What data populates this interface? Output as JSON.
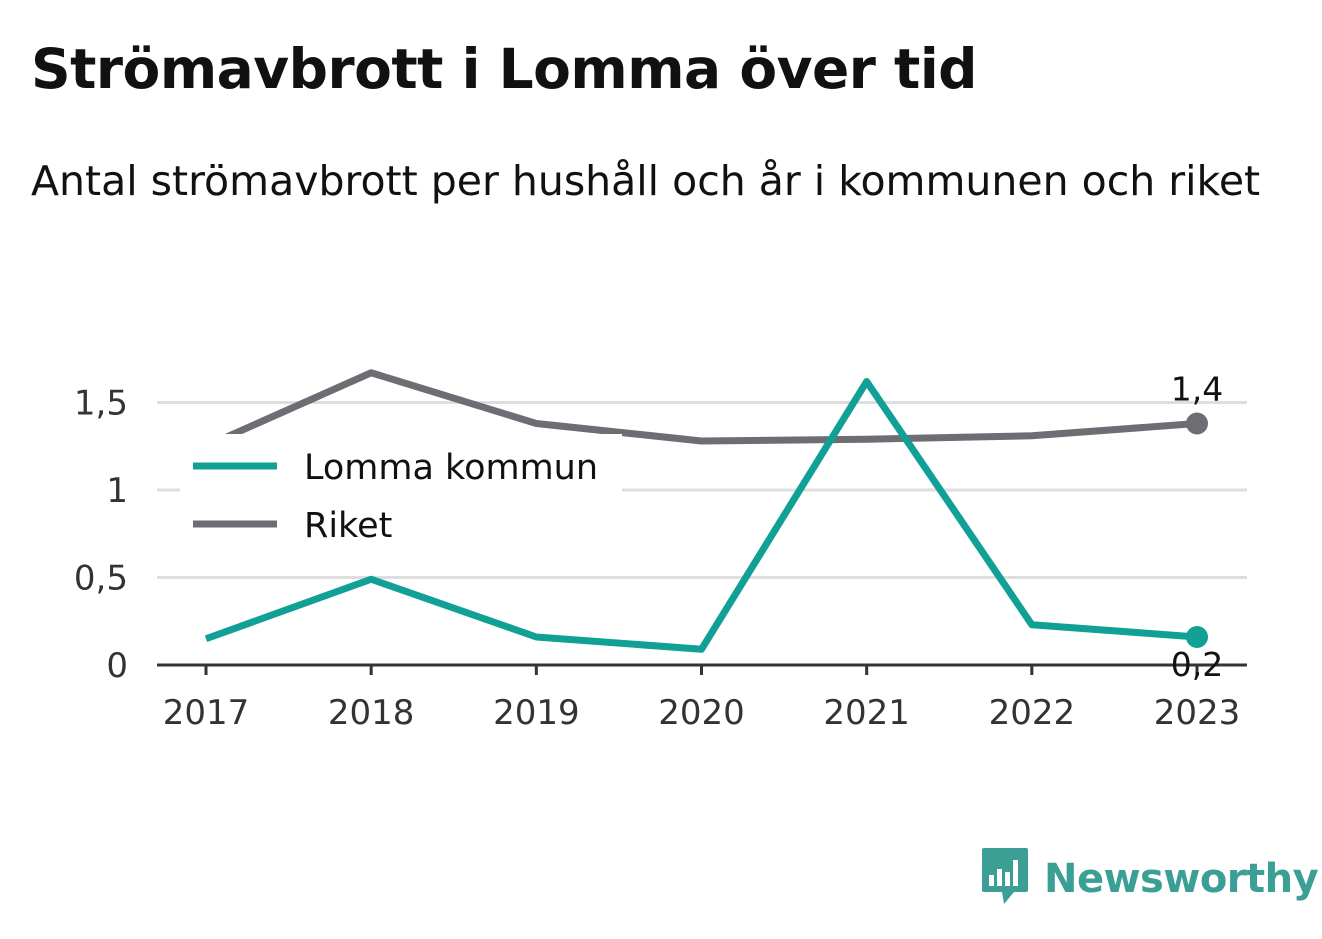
{
  "chart_data": {
    "type": "line",
    "title": "Strömavbrott i Lomma över tid",
    "subtitle": "Antal strömavbrott per hushåll och år i kommunen och riket",
    "xlabel": "",
    "ylabel": "",
    "x": [
      "2017",
      "2018",
      "2019",
      "2020",
      "2021",
      "2022",
      "2023"
    ],
    "ylim": [
      0,
      1.8
    ],
    "yticks": [
      {
        "value": 0,
        "label": "0"
      },
      {
        "value": 0.5,
        "label": "0,5"
      },
      {
        "value": 1,
        "label": "1"
      },
      {
        "value": 1.5,
        "label": "1,5"
      }
    ],
    "grid": true,
    "legend": "top-left",
    "series": [
      {
        "name": "Lomma kommun",
        "color": "#10a095",
        "values": [
          0.15,
          0.49,
          0.16,
          0.09,
          1.62,
          0.23,
          0.16
        ],
        "end_label": "0,2"
      },
      {
        "name": "Riket",
        "color": "#6e6d74",
        "values": [
          1.25,
          1.67,
          1.38,
          1.28,
          1.29,
          1.31,
          1.38
        ],
        "end_label": "1,4"
      }
    ]
  },
  "brand": {
    "name": "Newsworthy",
    "logo_icon": "newsworthy-logo-icon",
    "color": "#3b9f95"
  }
}
